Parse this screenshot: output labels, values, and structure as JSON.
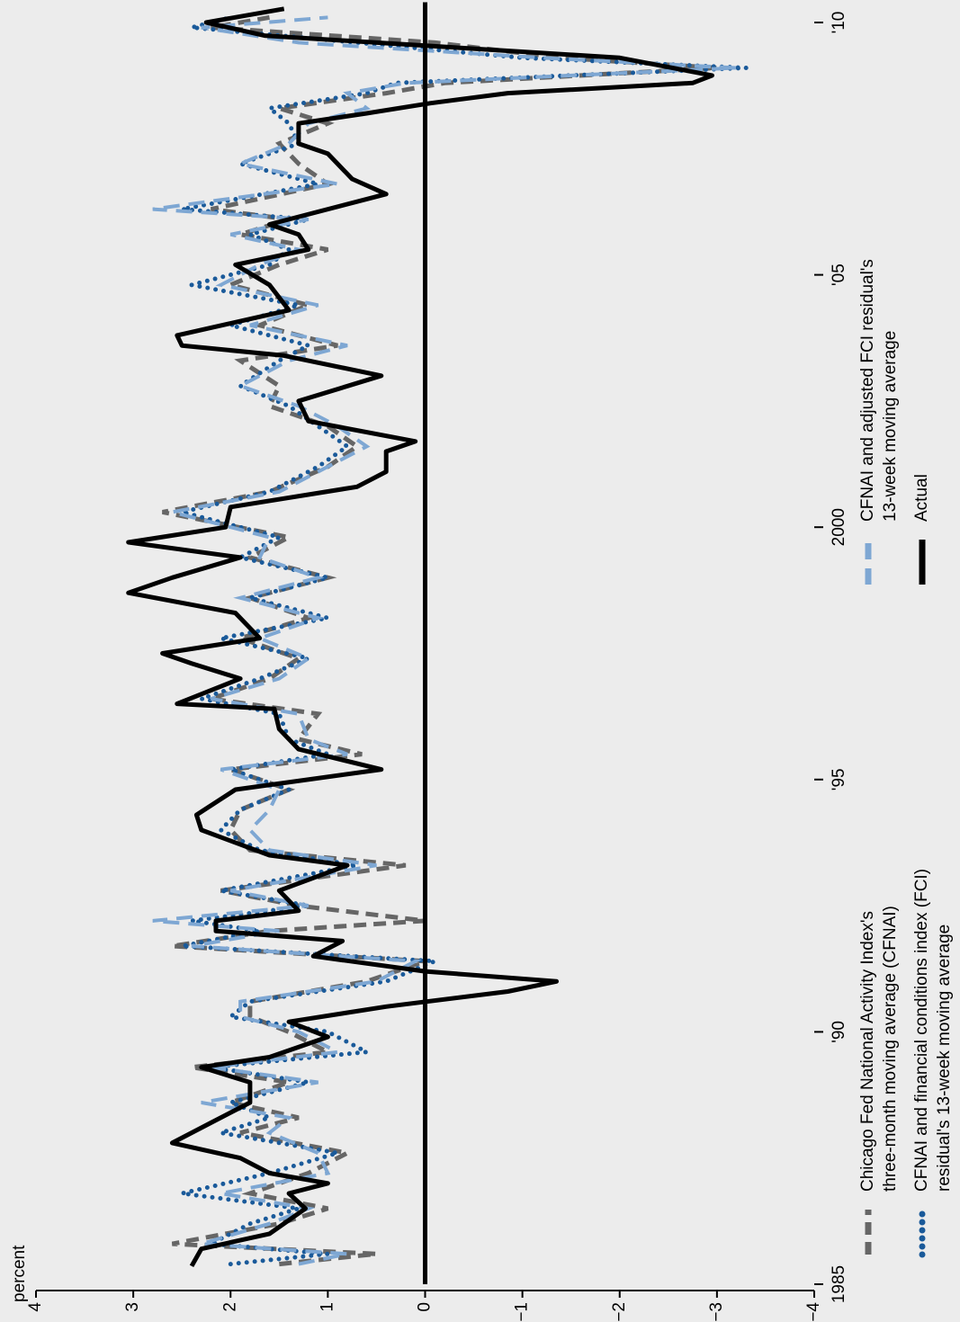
{
  "chart_data": {
    "type": "line",
    "y_label": "percent",
    "xlim": [
      1985,
      2010.4
    ],
    "xticks": [
      1985,
      {
        "value": 1990,
        "label": "'90"
      },
      {
        "value": 1995,
        "label": "'95"
      },
      2000,
      {
        "value": 2005,
        "label": "'05"
      },
      {
        "value": 2010,
        "label": "'10"
      }
    ],
    "ylim": [
      -4,
      4
    ],
    "yticks": [
      4,
      3,
      2,
      1,
      0,
      {
        "value": -1,
        "label": "−1"
      },
      {
        "value": -2,
        "label": "−2"
      },
      {
        "value": -3,
        "label": "−3"
      },
      {
        "value": -4,
        "label": "−4"
      }
    ],
    "reference_line": 0,
    "series": [
      {
        "name": "Chicago Fed National Activity Index's\nthree-month moving average (CFNAI)",
        "color": "#666666",
        "line_style": "dashed",
        "x": [
          1985.4,
          1985.6,
          1985.8,
          1986.2,
          1986.5,
          1986.8,
          1987.2,
          1987.6,
          1988.0,
          1988.3,
          1988.6,
          1989.0,
          1989.3,
          1989.6,
          1990.0,
          1990.3,
          1990.6,
          1991.0,
          1991.4,
          1991.7,
          1992.0,
          1992.2,
          1992.5,
          1992.8,
          1993.3,
          1993.6,
          1994.0,
          1994.4,
          1994.8,
          1995.2,
          1995.5,
          1995.8,
          1996.3,
          1996.6,
          1997.0,
          1997.4,
          1997.8,
          1998.2,
          1998.6,
          1999.0,
          1999.4,
          1999.8,
          2000.3,
          2000.7,
          2001.2,
          2001.6,
          2002.0,
          2002.4,
          2002.8,
          2003.3,
          2003.6,
          2004.0,
          2004.4,
          2004.8,
          2005.2,
          2005.5,
          2005.8,
          2006.1,
          2006.3,
          2006.8,
          2007.2,
          2007.6,
          2008.0,
          2008.3,
          2008.6,
          2008.8,
          2009.1,
          2009.3,
          2009.6,
          2009.9,
          2010.1
        ],
        "values": [
          1.5,
          0.5,
          2.6,
          1.5,
          1.0,
          1.8,
          1.2,
          0.8,
          1.9,
          1.3,
          2.0,
          1.4,
          2.4,
          1.0,
          1.4,
          1.8,
          1.8,
          0.6,
          0.0,
          2.6,
          1.6,
          0.0,
          1.3,
          2.1,
          0.2,
          1.8,
          2.0,
          1.9,
          1.4,
          2.0,
          0.65,
          1.3,
          1.1,
          2.2,
          1.6,
          1.3,
          1.9,
          1.2,
          1.8,
          1.0,
          1.8,
          1.4,
          2.7,
          1.6,
          1.0,
          0.7,
          1.0,
          1.6,
          1.5,
          1.9,
          0.9,
          1.7,
          1.2,
          2.0,
          1.5,
          1.0,
          1.9,
          1.4,
          2.2,
          1.0,
          1.3,
          1.5,
          1.0,
          1.5,
          0.4,
          -0.2,
          -3.0,
          -1.4,
          -0.1,
          2.2,
          1.6
        ]
      },
      {
        "name": "CFNAI and financial conditions index (FCI)\nresidual's 13-week moving average",
        "color": "#1a5a9a",
        "line_style": "dotted",
        "x": [
          1985.4,
          1985.6,
          1985.8,
          1986.2,
          1986.5,
          1986.8,
          1987.2,
          1987.6,
          1988.0,
          1988.3,
          1988.6,
          1989.0,
          1989.3,
          1989.6,
          1990.0,
          1990.3,
          1990.6,
          1991.0,
          1991.4,
          1991.7,
          1992.0,
          1992.2,
          1992.5,
          1992.8,
          1993.3,
          1993.6,
          1994.0,
          1994.4,
          1994.8,
          1995.2,
          1995.5,
          1995.8,
          1996.3,
          1996.6,
          1997.0,
          1997.4,
          1997.8,
          1998.2,
          1998.6,
          1999.0,
          1999.4,
          1999.8,
          2000.3,
          2000.7,
          2001.2,
          2001.6,
          2002.0,
          2002.4,
          2002.8,
          2003.3,
          2003.6,
          2004.0,
          2004.4,
          2004.8,
          2005.2,
          2005.5,
          2005.8,
          2006.1,
          2006.3,
          2006.8,
          2007.2,
          2007.6,
          2008.0,
          2008.3,
          2008.6,
          2008.8,
          2009.1,
          2009.3,
          2009.6,
          2009.9,
          2010.1
        ],
        "values": [
          2.0,
          1.0,
          2.2,
          1.8,
          1.3,
          2.5,
          1.6,
          0.9,
          2.1,
          1.6,
          2.0,
          1.2,
          2.2,
          0.6,
          1.0,
          2.0,
          1.8,
          0.4,
          -0.1,
          2.5,
          1.7,
          2.4,
          1.2,
          2.1,
          0.7,
          1.7,
          2.1,
          1.9,
          1.4,
          2.0,
          1.0,
          1.4,
          1.5,
          2.3,
          1.7,
          1.2,
          2.1,
          1.0,
          1.8,
          1.0,
          1.9,
          1.5,
          2.5,
          1.6,
          1.1,
          0.8,
          1.1,
          1.4,
          1.9,
          1.5,
          1.2,
          2.0,
          1.3,
          2.4,
          1.6,
          1.4,
          1.8,
          1.2,
          2.5,
          1.1,
          1.9,
          1.3,
          1.4,
          1.6,
          0.6,
          0.3,
          -3.3,
          -1.0,
          0.7,
          2.4,
          2.0
        ]
      },
      {
        "name": "CFNAI and adjusted FCI residual's\n13-week moving average",
        "color": "#7ea7d3",
        "line_style": "dashed",
        "x": [
          1985.4,
          1985.6,
          1985.8,
          1986.2,
          1986.5,
          1986.8,
          1987.2,
          1987.6,
          1988.0,
          1988.3,
          1988.6,
          1989.0,
          1989.3,
          1989.6,
          1990.0,
          1990.3,
          1990.6,
          1991.0,
          1991.4,
          1991.7,
          1992.0,
          1992.2,
          1992.5,
          1992.8,
          1993.3,
          1993.6,
          1994.0,
          1994.4,
          1994.8,
          1995.2,
          1995.5,
          1995.8,
          1996.3,
          1996.6,
          1997.0,
          1997.4,
          1997.8,
          1998.2,
          1998.6,
          1999.0,
          1999.4,
          1999.8,
          2000.3,
          2000.7,
          2001.2,
          2001.6,
          2002.0,
          2002.4,
          2002.8,
          2003.3,
          2003.6,
          2004.0,
          2004.4,
          2004.8,
          2005.2,
          2005.5,
          2005.8,
          2006.1,
          2006.3,
          2006.8,
          2007.2,
          2007.6,
          2008.0,
          2008.3,
          2008.6,
          2008.8,
          2009.1,
          2009.3,
          2009.6,
          2009.9,
          2010.1
        ],
        "values": [
          1.3,
          0.8,
          2.3,
          1.6,
          1.2,
          2.1,
          1.0,
          1.1,
          1.6,
          1.4,
          2.3,
          1.1,
          2.2,
          0.9,
          1.3,
          1.9,
          1.9,
          0.5,
          0.1,
          2.4,
          1.5,
          2.8,
          1.2,
          2.0,
          0.5,
          1.6,
          1.8,
          1.6,
          1.5,
          2.1,
          0.8,
          1.2,
          1.3,
          2.2,
          1.5,
          1.2,
          1.7,
          1.1,
          1.9,
          1.1,
          1.7,
          1.6,
          2.6,
          1.5,
          1.0,
          0.6,
          0.9,
          1.3,
          1.9,
          1.4,
          0.8,
          1.8,
          1.1,
          2.1,
          1.7,
          1.3,
          2.0,
          1.2,
          2.8,
          0.9,
          1.9,
          1.4,
          1.2,
          0.6,
          0.8,
          0.2,
          -3.2,
          -1.2,
          1.3,
          2.3,
          1.0
        ]
      },
      {
        "name": "Actual",
        "color": "#000000",
        "line_style": "solid",
        "x": [
          1985.36,
          1985.7,
          1986.0,
          1986.5,
          1986.8,
          1987.0,
          1987.2,
          1987.5,
          1987.8,
          1988.2,
          1988.6,
          1989.0,
          1989.3,
          1989.5,
          1989.9,
          1990.2,
          1990.5,
          1990.8,
          1991.0,
          1991.2,
          1991.5,
          1991.8,
          1992.0,
          1992.2,
          1992.4,
          1992.8,
          1993.3,
          1993.5,
          1994.0,
          1994.3,
          1994.8,
          1995.2,
          1995.6,
          1996.0,
          1996.4,
          1996.5,
          1997.0,
          1997.3,
          1997.5,
          1997.8,
          1998.3,
          1998.7,
          1999.0,
          1999.4,
          1999.7,
          2000.0,
          2000.4,
          2000.8,
          2001.1,
          2001.5,
          2001.7,
          2002.1,
          2002.5,
          2003.0,
          2003.4,
          2003.6,
          2003.8,
          2004.3,
          2004.8,
          2005.2,
          2005.5,
          2005.8,
          2006.0,
          2006.6,
          2006.9,
          2007.4,
          2007.6,
          2008.0,
          2008.2,
          2008.4,
          2008.6,
          2008.8,
          2008.95,
          2009.3,
          2009.74,
          2010.0,
          2010.27
        ],
        "values": [
          2.4,
          2.3,
          1.6,
          1.23,
          1.4,
          1.0,
          1.6,
          1.9,
          2.6,
          2.2,
          1.8,
          1.8,
          2.3,
          1.6,
          1.0,
          1.4,
          0.4,
          -0.85,
          -1.35,
          0.0,
          1.15,
          0.85,
          2.15,
          2.15,
          1.3,
          1.5,
          0.8,
          1.6,
          2.3,
          2.35,
          1.95,
          0.45,
          1.3,
          1.5,
          1.55,
          2.55,
          1.9,
          2.4,
          2.7,
          1.7,
          1.95,
          3.05,
          2.6,
          1.9,
          3.05,
          2.05,
          2.0,
          0.7,
          0.4,
          0.4,
          0.1,
          1.2,
          1.3,
          0.45,
          1.45,
          2.5,
          2.55,
          1.4,
          1.6,
          1.95,
          1.2,
          1.3,
          1.6,
          0.4,
          0.75,
          1.0,
          1.3,
          1.3,
          0.6,
          -0.05,
          -0.85,
          -2.75,
          -2.95,
          -2.0,
          1.65,
          2.25,
          1.45
        ]
      }
    ]
  }
}
